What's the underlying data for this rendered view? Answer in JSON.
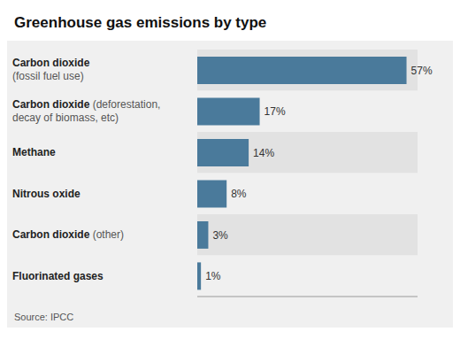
{
  "chart_data": {
    "type": "bar",
    "title": "Greenhouse gas emissions by type",
    "orientation": "horizontal",
    "categories": [
      "Carbon dioxide\n(fossil fuel use)",
      "Carbon dioxide (deforestation,\ndecay of biomass, etc)",
      "Methane",
      "Nitrous oxide",
      "Carbon dioxide (other)",
      "Fluorinated gases"
    ],
    "values": [
      57,
      17,
      14,
      8,
      3,
      1
    ],
    "value_labels": [
      "57%",
      "17%",
      "14%",
      "8%",
      "3%",
      "1%"
    ],
    "data_labels": true,
    "color": "#4a7a9b",
    "xlim": [
      0,
      60
    ],
    "tick_labels": false,
    "grid": false,
    "annotations": [
      "Source: IPCC"
    ]
  }
}
